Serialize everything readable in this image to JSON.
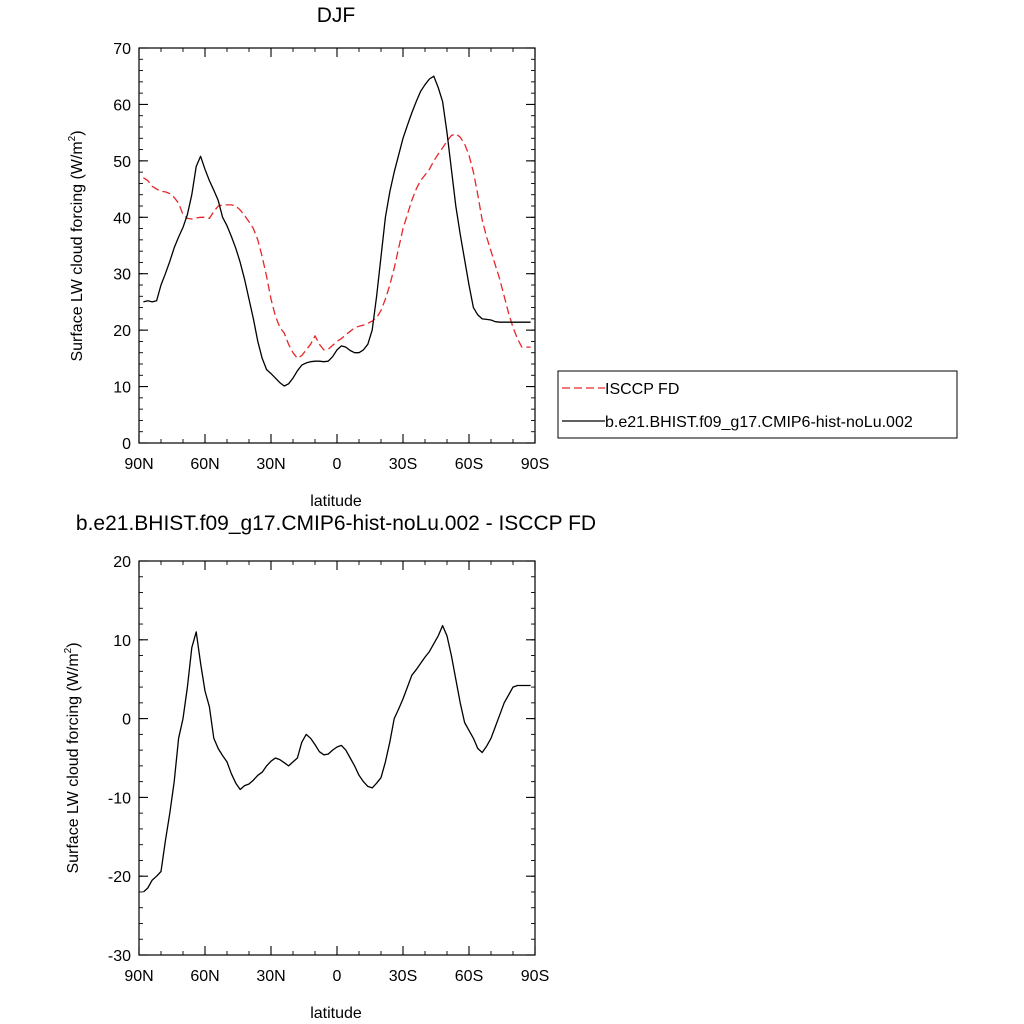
{
  "chart_data": [
    {
      "type": "line",
      "title": "DJF",
      "xlabel": "latitude",
      "ylabel": "Surface LW cloud forcing (W/m",
      "ylabel_sup": "2",
      "ylabel_tail": ")",
      "xlim": [
        90,
        -90
      ],
      "ylim": [
        0,
        70
      ],
      "x_ticks": [
        90,
        60,
        30,
        0,
        -30,
        -60,
        -90
      ],
      "x_tick_labels": [
        "90N",
        "60N",
        "30N",
        "0",
        "30S",
        "60S",
        "90S"
      ],
      "y_ticks": [
        0,
        10,
        20,
        30,
        40,
        50,
        60,
        70
      ],
      "y_tick_labels": [
        "0",
        "10",
        "20",
        "30",
        "40",
        "50",
        "60",
        "70"
      ],
      "legend_position": "right",
      "series": [
        {
          "name": "ISCCP FD",
          "color": "#e8262a",
          "dash": "dashed",
          "x": [
            88,
            86,
            84,
            82,
            80,
            78,
            76,
            74,
            72,
            70,
            68,
            66,
            64,
            62,
            60,
            58,
            56,
            54,
            52,
            50,
            48,
            46,
            44,
            42,
            40,
            38,
            36,
            34,
            32,
            30,
            28,
            26,
            24,
            22,
            20,
            18,
            16,
            14,
            12,
            10,
            8,
            6,
            4,
            2,
            0,
            -2,
            -4,
            -6,
            -8,
            -10,
            -12,
            -14,
            -16,
            -18,
            -20,
            -22,
            -24,
            -26,
            -28,
            -30,
            -32,
            -34,
            -36,
            -38,
            -40,
            -42,
            -44,
            -46,
            -48,
            -50,
            -52,
            -54,
            -56,
            -58,
            -60,
            -62,
            -64,
            -66,
            -68,
            -70,
            -72,
            -74,
            -76,
            -78,
            -80,
            -82,
            -84,
            -86,
            -88
          ],
          "values": [
            47,
            46.5,
            45.5,
            45,
            44.6,
            44.5,
            44.2,
            43.5,
            42.5,
            40.5,
            39.8,
            39.7,
            39.9,
            40,
            40,
            39.8,
            41,
            42,
            42.2,
            42.2,
            42.2,
            42,
            41.3,
            40.3,
            39.2,
            38,
            36,
            33,
            29.5,
            25.5,
            22.5,
            20.5,
            19.5,
            17.5,
            16,
            15,
            15.5,
            16.5,
            17.5,
            19,
            17.5,
            16.5,
            16.6,
            17.3,
            18,
            18.5,
            19.2,
            19.8,
            20.4,
            20.7,
            20.9,
            21.2,
            21.6,
            22.2,
            23.5,
            25.5,
            28,
            31,
            34.5,
            38,
            40.5,
            43,
            45,
            46.5,
            47.5,
            48.5,
            50,
            51.2,
            52.3,
            53.5,
            54.5,
            54.8,
            54.2,
            53,
            51,
            48,
            44,
            39.5,
            36.5,
            34,
            31.5,
            29,
            26,
            23,
            20.5,
            18.5,
            17,
            17,
            17
          ]
        },
        {
          "name": "b.e21.BHIST.f09_g17.CMIP6-hist-noLu.002",
          "color": "#000000",
          "dash": "solid",
          "x": [
            88,
            86,
            84,
            82,
            80,
            78,
            76,
            74,
            72,
            70,
            68,
            66,
            64,
            62,
            60,
            58,
            56,
            54,
            52,
            50,
            48,
            46,
            44,
            42,
            40,
            38,
            36,
            34,
            32,
            30,
            28,
            26,
            24,
            22,
            20,
            18,
            16,
            14,
            12,
            10,
            8,
            6,
            4,
            2,
            0,
            -2,
            -4,
            -6,
            -8,
            -10,
            -12,
            -14,
            -16,
            -18,
            -20,
            -22,
            -24,
            -26,
            -28,
            -30,
            -32,
            -34,
            -36,
            -38,
            -40,
            -42,
            -44,
            -46,
            -48,
            -50,
            -52,
            -54,
            -56,
            -58,
            -60,
            -62,
            -64,
            -66,
            -68,
            -70,
            -72,
            -74,
            -76,
            -78,
            -80,
            -82,
            -84,
            -86,
            -88
          ],
          "values": [
            25,
            25.2,
            25,
            25.2,
            28,
            30,
            32.2,
            34.6,
            36.5,
            38.2,
            40.5,
            44,
            49,
            50.8,
            48.5,
            46.5,
            44.8,
            43,
            40,
            38.5,
            36.6,
            34.5,
            32,
            29,
            25.5,
            22,
            18,
            15,
            13,
            12.3,
            11.5,
            10.7,
            10.1,
            10.5,
            11.5,
            12.8,
            13.8,
            14.2,
            14.4,
            14.5,
            14.5,
            14.4,
            14.5,
            15.3,
            16.5,
            17.2,
            17,
            16.4,
            16,
            16,
            16.5,
            17.5,
            20,
            26,
            33,
            40,
            44.5,
            48,
            51,
            54,
            56.3,
            58.5,
            60.5,
            62.3,
            63.5,
            64.5,
            65,
            63,
            60.5,
            55,
            48.5,
            42,
            37,
            32.5,
            28,
            24,
            22.7,
            22,
            21.9,
            21.8,
            21.5,
            21.4,
            21.4,
            21.4,
            21.4,
            21.4,
            21.4,
            21.4,
            21.4
          ]
        }
      ]
    },
    {
      "type": "line",
      "title": "b.e21.BHIST.f09_g17.CMIP6-hist-noLu.002 - ISCCP FD",
      "xlabel": "latitude",
      "ylabel": "Surface LW cloud forcing (W/m",
      "ylabel_sup": "2",
      "ylabel_tail": ")",
      "xlim": [
        90,
        -90
      ],
      "ylim": [
        -30,
        20
      ],
      "x_ticks": [
        90,
        60,
        30,
        0,
        -30,
        -60,
        -90
      ],
      "x_tick_labels": [
        "90N",
        "60N",
        "30N",
        "0",
        "30S",
        "60S",
        "90S"
      ],
      "y_ticks": [
        -30,
        -20,
        -10,
        0,
        10,
        20
      ],
      "y_tick_labels": [
        "-30",
        "-20",
        "-10",
        "0",
        "10",
        "20"
      ],
      "series": [
        {
          "color": "#000000",
          "dash": "solid",
          "x": [
            88,
            86,
            84,
            82,
            80,
            78,
            76,
            74,
            72,
            70,
            68,
            66,
            64,
            62,
            60,
            58,
            56,
            54,
            52,
            50,
            48,
            46,
            44,
            42,
            40,
            38,
            36,
            34,
            32,
            30,
            28,
            26,
            24,
            22,
            20,
            18,
            16,
            14,
            12,
            10,
            8,
            6,
            4,
            2,
            0,
            -2,
            -4,
            -6,
            -8,
            -10,
            -12,
            -14,
            -16,
            -18,
            -20,
            -22,
            -24,
            -26,
            -28,
            -30,
            -32,
            -34,
            -36,
            -38,
            -40,
            -42,
            -44,
            -46,
            -48,
            -50,
            -52,
            -54,
            -56,
            -58,
            -60,
            -62,
            -64,
            -66,
            -68,
            -70,
            -72,
            -74,
            -76,
            -78,
            -80,
            -82,
            -84,
            -86,
            -88
          ],
          "values": [
            -22,
            -21.5,
            -20.5,
            -20,
            -19.4,
            -15.5,
            -12,
            -8,
            -2.5,
            0,
            4,
            9,
            11,
            7,
            3.5,
            1.5,
            -2.5,
            -3.8,
            -4.7,
            -5.5,
            -7,
            -8.2,
            -9,
            -8.5,
            -8.3,
            -7.8,
            -7.2,
            -6.8,
            -6,
            -5.4,
            -5,
            -5.2,
            -5.6,
            -6,
            -5.5,
            -5,
            -3,
            -2,
            -2.5,
            -3.3,
            -4.2,
            -4.6,
            -4.5,
            -4,
            -3.6,
            -3.4,
            -4,
            -5,
            -6,
            -7.2,
            -8,
            -8.6,
            -8.8,
            -8.2,
            -7.5,
            -5.5,
            -3,
            0,
            1.2,
            2.5,
            4,
            5.5,
            6.2,
            7,
            7.8,
            8.5,
            9.5,
            10.5,
            11.8,
            10.5,
            8,
            5,
            2,
            -0.5,
            -1.5,
            -2.5,
            -3.8,
            -4.3,
            -3.5,
            -2.5,
            -1,
            0.5,
            2,
            3,
            4,
            4.2,
            4.2,
            4.2,
            4.2
          ]
        }
      ]
    }
  ]
}
